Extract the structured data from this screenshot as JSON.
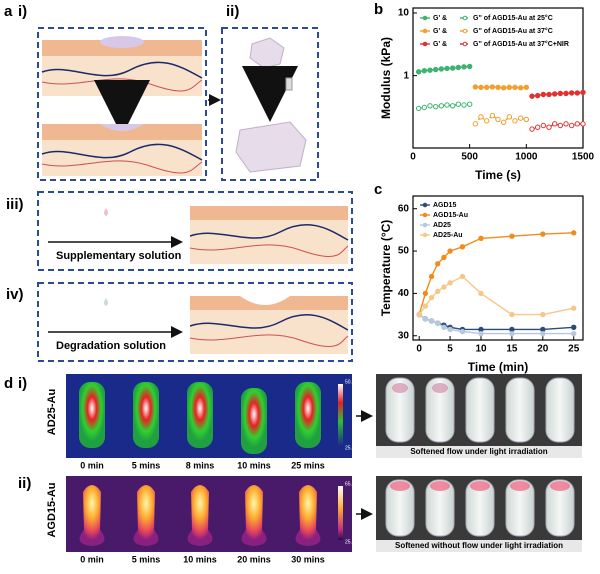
{
  "panel_labels": {
    "a": "a",
    "a_i": "i)",
    "a_ii": "ii)",
    "a_iii": "iii)",
    "a_iv": "iv)",
    "b": "b",
    "c": "c",
    "d": "d",
    "d_i": "i)",
    "d_ii": "ii)"
  },
  "panel_a": {
    "supplementary": "Supplementary solution",
    "degradation": "Degradation solution"
  },
  "panel_d": {
    "rows": [
      {
        "sample": "AD25-Au",
        "times": [
          "0 min",
          "5 mins",
          "8 mins",
          "10 mins",
          "25 mins"
        ],
        "scale_max": "50.0",
        "scale_min": "25.0",
        "caption": "Softened flow under light irradiation"
      },
      {
        "sample": "AGD15-Au",
        "times": [
          "0 min",
          "5 mins",
          "10 mins",
          "20 mins",
          "30 mins"
        ],
        "scale_max": "65.0",
        "scale_min": "25.0",
        "caption": "Softened without flow under light irradiation"
      }
    ]
  },
  "chart_data": [
    {
      "type": "line",
      "xlabel": "Time (s)",
      "ylabel": "Modulus (kPa)",
      "log_y": true,
      "xlim": [
        0,
        1500
      ],
      "xticks": [
        0,
        500,
        1000,
        1500
      ],
      "ylim": [
        0.07,
        12
      ],
      "yticks": [
        1,
        10
      ],
      "series": [
        {
          "name": "G' &",
          "color": "#3cb371",
          "dash": false,
          "x": [
            50,
            100,
            150,
            200,
            250,
            300,
            350,
            400,
            450,
            500
          ],
          "values": [
            1.15,
            1.2,
            1.22,
            1.25,
            1.28,
            1.3,
            1.32,
            1.35,
            1.38,
            1.4
          ]
        },
        {
          "name": "G'' of AGD15-Au at 25°C",
          "color": "#3cb371",
          "dash": true,
          "x": [
            50,
            100,
            150,
            200,
            250,
            300,
            350,
            400,
            450,
            500
          ],
          "values": [
            0.3,
            0.31,
            0.33,
            0.32,
            0.33,
            0.34,
            0.33,
            0.35,
            0.34,
            0.35
          ]
        },
        {
          "name": "G' &",
          "color": "#f0a030",
          "dash": false,
          "x": [
            550,
            600,
            650,
            700,
            750,
            800,
            850,
            900,
            950,
            1000
          ],
          "values": [
            0.66,
            0.65,
            0.65,
            0.66,
            0.65,
            0.64,
            0.65,
            0.65,
            0.64,
            0.65
          ]
        },
        {
          "name": "G'' of AGD15-Au at 37°C",
          "color": "#f0a030",
          "dash": true,
          "x": [
            550,
            600,
            650,
            700,
            750,
            800,
            850,
            900,
            950,
            1000
          ],
          "values": [
            0.17,
            0.22,
            0.19,
            0.23,
            0.2,
            0.18,
            0.22,
            0.19,
            0.21,
            0.2
          ]
        },
        {
          "name": "G' &",
          "color": "#e03030",
          "dash": false,
          "x": [
            1050,
            1100,
            1150,
            1200,
            1250,
            1300,
            1350,
            1400,
            1450,
            1500
          ],
          "values": [
            0.47,
            0.48,
            0.5,
            0.5,
            0.51,
            0.52,
            0.52,
            0.53,
            0.53,
            0.54
          ]
        },
        {
          "name": "G'' of AGD15-Au at 37°C+NIR",
          "color": "#e03030",
          "dash": true,
          "x": [
            1050,
            1100,
            1150,
            1200,
            1250,
            1300,
            1350,
            1400,
            1450,
            1500
          ],
          "values": [
            0.14,
            0.15,
            0.16,
            0.15,
            0.17,
            0.16,
            0.17,
            0.16,
            0.17,
            0.17
          ]
        }
      ]
    },
    {
      "type": "line",
      "xlabel": "Time (min)",
      "ylabel": "Temperature (°C)",
      "log_y": false,
      "xlim": [
        -1,
        26.5
      ],
      "xticks": [
        0,
        5,
        10,
        15,
        20,
        25
      ],
      "ylim": [
        29,
        63
      ],
      "yticks": [
        30,
        40,
        50,
        60
      ],
      "x": [
        0,
        1,
        2,
        3,
        4,
        5,
        7,
        10,
        15,
        20,
        25
      ],
      "series": [
        {
          "name": "AGD15",
          "color": "#2c4a7a",
          "dash": false,
          "values": [
            35,
            34,
            33.5,
            33,
            32.5,
            32,
            31.5,
            31.5,
            31.5,
            31.5,
            32
          ]
        },
        {
          "name": "AGD15-Au",
          "color": "#f08c1e",
          "dash": false,
          "values": [
            35,
            40,
            44,
            47,
            48.5,
            50,
            51,
            53,
            53.5,
            54,
            54.3
          ]
        },
        {
          "name": "AD25",
          "color": "#b8c8dc",
          "dash": false,
          "values": [
            35,
            34,
            33.5,
            33,
            32,
            31.5,
            31,
            30.5,
            30.5,
            30.5,
            30.5
          ]
        },
        {
          "name": "AD25-Au",
          "color": "#f5c88a",
          "dash": false,
          "values": [
            35,
            37,
            39,
            40.5,
            41.5,
            42.5,
            44,
            40,
            35,
            35,
            36.5
          ]
        }
      ]
    }
  ]
}
